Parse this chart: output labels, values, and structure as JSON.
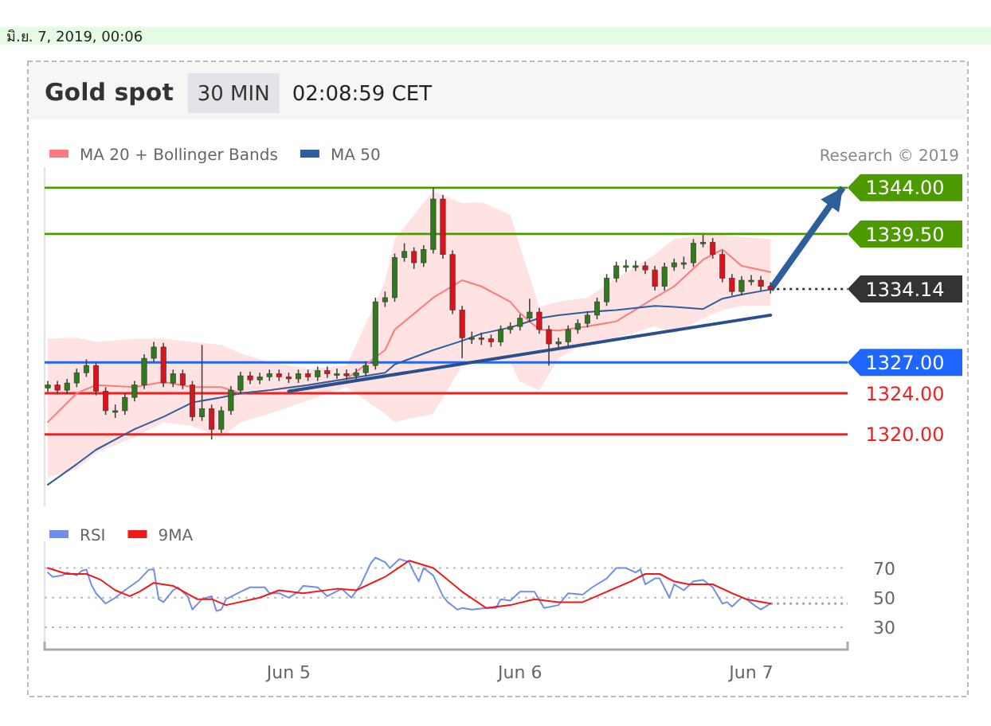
{
  "chart_data": [
    {
      "type": "candlestick",
      "title": "Gold spot",
      "subtitle": "30 MIN",
      "annotations": [
        "02:08:59 CET",
        "Research © 2019",
        "มิ.ย. 7, 2019, 00:06"
      ],
      "x": [
        "2019-06-03T23:00",
        "2019-06-04T00:00",
        "2019-06-04T01:00",
        "2019-06-04T02:00",
        "2019-06-04T03:00",
        "2019-06-04T04:00",
        "2019-06-04T05:00",
        "2019-06-04T06:00",
        "2019-06-04T07:00",
        "2019-06-04T08:00",
        "2019-06-04T09:00",
        "2019-06-04T10:00",
        "2019-06-04T11:00",
        "2019-06-04T12:00",
        "2019-06-04T13:00",
        "2019-06-04T14:00",
        "2019-06-04T15:00",
        "2019-06-04T16:00",
        "2019-06-04T17:00",
        "2019-06-04T18:00",
        "2019-06-04T19:00",
        "2019-06-04T20:00",
        "2019-06-04T21:00",
        "2019-06-04T22:00",
        "2019-06-04T23:00",
        "2019-06-05T00:00",
        "2019-06-05T01:00",
        "2019-06-05T02:00",
        "2019-06-05T03:00",
        "2019-06-05T04:00",
        "2019-06-05T05:00",
        "2019-06-05T06:00",
        "2019-06-05T07:00",
        "2019-06-05T08:00",
        "2019-06-05T09:00",
        "2019-06-05T10:00",
        "2019-06-05T11:00",
        "2019-06-05T12:00",
        "2019-06-05T13:00",
        "2019-06-05T14:00",
        "2019-06-05T15:00",
        "2019-06-05T16:00",
        "2019-06-05T17:00",
        "2019-06-05T18:00",
        "2019-06-05T19:00",
        "2019-06-05T20:00",
        "2019-06-05T21:00",
        "2019-06-05T22:00",
        "2019-06-05T23:00",
        "2019-06-06T00:00",
        "2019-06-06T01:00",
        "2019-06-06T02:00",
        "2019-06-06T03:00",
        "2019-06-06T04:00",
        "2019-06-06T05:00",
        "2019-06-06T06:00",
        "2019-06-06T07:00",
        "2019-06-06T08:00",
        "2019-06-06T09:00",
        "2019-06-06T10:00",
        "2019-06-06T11:00",
        "2019-06-06T12:00",
        "2019-06-06T13:00",
        "2019-06-06T14:00",
        "2019-06-06T15:00",
        "2019-06-06T16:00",
        "2019-06-06T17:00",
        "2019-06-06T18:00",
        "2019-06-06T19:00",
        "2019-06-06T20:00",
        "2019-06-06T21:00",
        "2019-06-06T22:00",
        "2019-06-06T23:00",
        "2019-06-07T00:00",
        "2019-06-07T01:00",
        "2019-06-07T02:00"
      ],
      "ohlc": [
        [
          1324.5,
          1325.2,
          1324.1,
          1324.8
        ],
        [
          1324.8,
          1325.2,
          1323.9,
          1324.3
        ],
        [
          1324.3,
          1325.4,
          1323.9,
          1325.0
        ],
        [
          1325.0,
          1326.4,
          1324.6,
          1326.0
        ],
        [
          1326.0,
          1327.3,
          1325.6,
          1326.7
        ],
        [
          1326.7,
          1327.0,
          1323.8,
          1324.2
        ],
        [
          1324.2,
          1324.6,
          1321.9,
          1322.3
        ],
        [
          1322.3,
          1322.9,
          1321.6,
          1322.3
        ],
        [
          1322.3,
          1324.0,
          1321.9,
          1323.6
        ],
        [
          1323.6,
          1325.2,
          1323.2,
          1324.8
        ],
        [
          1324.8,
          1327.8,
          1324.4,
          1327.4
        ],
        [
          1327.4,
          1329.0,
          1327.0,
          1328.5
        ],
        [
          1328.5,
          1328.9,
          1324.6,
          1325.0
        ],
        [
          1325.0,
          1326.3,
          1324.6,
          1325.9
        ],
        [
          1325.9,
          1326.3,
          1324.4,
          1324.8
        ],
        [
          1324.8,
          1325.2,
          1321.3,
          1321.7
        ],
        [
          1321.7,
          1328.7,
          1321.3,
          1322.5
        ],
        [
          1322.5,
          1322.9,
          1319.5,
          1320.5
        ],
        [
          1320.5,
          1322.7,
          1320.1,
          1322.3
        ],
        [
          1322.3,
          1324.7,
          1321.9,
          1324.3
        ],
        [
          1324.3,
          1326.1,
          1323.9,
          1325.7
        ],
        [
          1325.7,
          1326.1,
          1324.9,
          1325.3
        ],
        [
          1325.3,
          1326.0,
          1324.9,
          1325.6
        ],
        [
          1325.6,
          1326.3,
          1325.2,
          1325.9
        ],
        [
          1325.9,
          1326.3,
          1325.2,
          1325.6
        ],
        [
          1325.6,
          1326.0,
          1325.0,
          1325.4
        ],
        [
          1325.4,
          1326.3,
          1325.0,
          1325.9
        ],
        [
          1325.9,
          1326.3,
          1325.2,
          1325.6
        ],
        [
          1325.6,
          1326.6,
          1325.2,
          1326.2
        ],
        [
          1326.2,
          1326.6,
          1325.5,
          1325.9
        ],
        [
          1325.9,
          1326.4,
          1325.4,
          1325.9
        ],
        [
          1325.9,
          1326.3,
          1325.3,
          1325.7
        ],
        [
          1325.7,
          1326.4,
          1325.3,
          1326.0
        ],
        [
          1326.0,
          1327.1,
          1325.6,
          1326.7
        ],
        [
          1326.7,
          1333.3,
          1326.3,
          1332.9
        ],
        [
          1332.9,
          1333.9,
          1332.4,
          1333.3
        ],
        [
          1333.3,
          1337.6,
          1332.9,
          1337.2
        ],
        [
          1337.2,
          1338.6,
          1336.8,
          1337.8
        ],
        [
          1337.8,
          1338.2,
          1336.1,
          1336.7
        ],
        [
          1336.7,
          1338.4,
          1336.3,
          1338.0
        ],
        [
          1338.0,
          1344.0,
          1337.6,
          1342.9
        ],
        [
          1342.9,
          1343.3,
          1337.1,
          1337.5
        ],
        [
          1337.5,
          1337.9,
          1331.7,
          1332.1
        ],
        [
          1332.1,
          1332.5,
          1327.4,
          1329.4
        ],
        [
          1329.4,
          1330.0,
          1328.8,
          1329.4
        ],
        [
          1329.4,
          1329.9,
          1328.7,
          1329.3
        ],
        [
          1329.3,
          1329.7,
          1328.5,
          1329.0
        ],
        [
          1329.0,
          1330.6,
          1328.6,
          1330.2
        ],
        [
          1330.2,
          1330.9,
          1329.8,
          1330.5
        ],
        [
          1330.5,
          1331.7,
          1330.1,
          1331.3
        ],
        [
          1331.3,
          1333.2,
          1330.9,
          1331.9
        ],
        [
          1331.9,
          1332.3,
          1329.8,
          1330.2
        ],
        [
          1330.2,
          1330.6,
          1326.7,
          1328.8
        ],
        [
          1328.8,
          1329.4,
          1328.4,
          1329.0
        ],
        [
          1329.0,
          1330.6,
          1328.6,
          1330.2
        ],
        [
          1330.2,
          1331.2,
          1329.8,
          1330.8
        ],
        [
          1330.8,
          1332.0,
          1330.4,
          1331.6
        ],
        [
          1331.6,
          1333.3,
          1331.2,
          1332.9
        ],
        [
          1332.9,
          1335.6,
          1332.5,
          1335.2
        ],
        [
          1335.2,
          1336.8,
          1334.8,
          1336.4
        ],
        [
          1336.4,
          1337.0,
          1335.8,
          1336.4
        ],
        [
          1336.4,
          1336.9,
          1335.9,
          1336.4
        ],
        [
          1336.4,
          1336.8,
          1335.6,
          1336.0
        ],
        [
          1336.0,
          1336.4,
          1334.0,
          1334.4
        ],
        [
          1334.4,
          1336.7,
          1334.0,
          1336.3
        ],
        [
          1336.3,
          1337.1,
          1335.9,
          1336.7
        ],
        [
          1336.7,
          1337.3,
          1336.1,
          1336.7
        ],
        [
          1336.7,
          1339.0,
          1336.3,
          1338.6
        ],
        [
          1338.6,
          1339.4,
          1338.2,
          1338.7
        ],
        [
          1338.7,
          1339.1,
          1337.1,
          1337.5
        ],
        [
          1337.5,
          1337.9,
          1334.8,
          1335.2
        ],
        [
          1335.2,
          1335.6,
          1333.5,
          1333.9
        ],
        [
          1333.9,
          1335.4,
          1333.5,
          1335.0
        ],
        [
          1335.0,
          1335.5,
          1334.5,
          1335.0
        ],
        [
          1335.0,
          1335.4,
          1334.0,
          1334.4
        ],
        [
          1334.4,
          1334.8,
          1333.7,
          1334.14
        ]
      ],
      "series": [
        {
          "name": "MA 20 + Bollinger Bands",
          "type": "line",
          "color": "#ff7b7b",
          "x": [
            "2019-06-03T23:00",
            "2019-06-04T02:00",
            "2019-06-04T04:00",
            "2019-06-04T08:00",
            "2019-06-04T11:00",
            "2019-06-04T14:00",
            "2019-06-04T17:00",
            "2019-06-04T19:00",
            "2019-06-04T22:00",
            "2019-06-05T02:00",
            "2019-06-05T06:00",
            "2019-06-05T10:00",
            "2019-06-05T11:00",
            "2019-06-05T15:00",
            "2019-06-05T18:00",
            "2019-06-05T20:00",
            "2019-06-05T23:00",
            "2019-06-06T00:00",
            "2019-06-06T02:00",
            "2019-06-06T04:00",
            "2019-06-06T07:00",
            "2019-06-06T10:00",
            "2019-06-06T14:00",
            "2019-06-06T16:00",
            "2019-06-06T19:00",
            "2019-06-06T21:00",
            "2019-06-06T23:00",
            "2019-06-07T02:00"
          ],
          "values": [
            1321.2,
            1324.0,
            1324.8,
            1324.6,
            1325.1,
            1324.6,
            1324.6,
            1324.0,
            1324.3,
            1324.8,
            1325.4,
            1328.2,
            1330.2,
            1333.3,
            1335.0,
            1334.4,
            1332.9,
            1331.8,
            1330.2,
            1330.1,
            1330.5,
            1331.0,
            1333.3,
            1334.4,
            1337.0,
            1338.0,
            1336.4,
            1335.8
          ],
          "upper": [
            1329.3,
            1329.4,
            1329.0,
            1329.3,
            1329.3,
            1329.0,
            1328.7,
            1327.9,
            1327.0,
            1326.4,
            1326.7,
            1334.9,
            1339.0,
            1343.7,
            1342.5,
            1342.6,
            1341.4,
            1338.3,
            1332.4,
            1332.9,
            1333.3,
            1335.2,
            1337.5,
            1339.0,
            1339.4,
            1339.4,
            1339.2,
            1339.0
          ],
          "lower": [
            1315.8,
            1316.6,
            1318.2,
            1319.7,
            1321.2,
            1320.8,
            1319.7,
            1321.2,
            1322.0,
            1323.3,
            1324.6,
            1322.0,
            1321.2,
            1322.0,
            1326.7,
            1327.1,
            1327.0,
            1325.1,
            1324.3,
            1327.4,
            1329.0,
            1329.4,
            1330.5,
            1329.8,
            1331.3,
            1332.1,
            1332.5,
            1332.5
          ]
        },
        {
          "name": "MA 50",
          "type": "line",
          "color": "#2f5e9e",
          "x": [
            "2019-06-03T23:00",
            "2019-06-04T02:00",
            "2019-06-04T04:00",
            "2019-06-04T08:00",
            "2019-06-04T11:00",
            "2019-06-04T14:00",
            "2019-06-04T17:00",
            "2019-06-04T19:00",
            "2019-06-04T22:00",
            "2019-06-05T02:00",
            "2019-06-05T06:00",
            "2019-06-05T10:00",
            "2019-06-05T11:00",
            "2019-06-05T15:00",
            "2019-06-05T18:00",
            "2019-06-05T20:00",
            "2019-06-05T23:00",
            "2019-06-06T00:00",
            "2019-06-06T02:00",
            "2019-06-06T04:00",
            "2019-06-06T07:00",
            "2019-06-06T10:00",
            "2019-06-06T14:00",
            "2019-06-06T16:00",
            "2019-06-06T19:00",
            "2019-06-06T21:00",
            "2019-06-06T23:00",
            "2019-06-07T02:00"
          ],
          "values": [
            1315.1,
            1317.1,
            1318.5,
            1320.5,
            1321.7,
            1323.1,
            1323.6,
            1324.0,
            1324.3,
            1324.8,
            1325.4,
            1326.0,
            1326.8,
            1328.2,
            1329.1,
            1329.8,
            1330.4,
            1330.7,
            1331.3,
            1331.6,
            1331.9,
            1332.1,
            1332.5,
            1332.4,
            1332.2,
            1333.2,
            1333.6,
            1334.1
          ]
        },
        {
          "type": "line",
          "color": "#2b4f8c",
          "x": [
            "2019-06-05T00:00",
            "2019-06-07T02:00"
          ],
          "values": [
            1324.2,
            1331.6
          ]
        },
        {
          "type": "line",
          "color": "#2d5f9a",
          "x": [
            "2019-06-07T02:00",
            "2019-06-07T09:30"
          ],
          "values": [
            1334.1,
            1344
          ]
        }
      ],
      "xlim": [
        "2019-06-03T22:40",
        "2019-06-07T10:00"
      ],
      "ylim": [
        1313,
        1346
      ],
      "legend": "top left",
      "ref_lines": [
        {
          "axis": "y",
          "value": 1344,
          "label": "1344.00",
          "color": "#4c9a00"
        },
        {
          "axis": "y",
          "value": 1339.5,
          "label": "1339.50",
          "color": "#4c9a00"
        },
        {
          "axis": "y",
          "value": 1334.14,
          "label": "1334.14",
          "color": "#333333",
          "line_style": "dotted"
        },
        {
          "axis": "y",
          "value": 1327,
          "label": "1327.00",
          "color": "#1f66ff"
        },
        {
          "axis": "y",
          "value": 1324,
          "label": "1324.00",
          "color": "#f02020"
        },
        {
          "axis": "y",
          "value": 1320,
          "label": "1320.00",
          "color": "#f02020"
        }
      ]
    },
    {
      "type": "line",
      "series": [
        {
          "name": "RSI",
          "color": "#6f8fe8",
          "x": [
            "2019-06-03T23:00",
            "2019-06-03T23:30",
            "2019-06-04T00:30",
            "2019-06-04T01:00",
            "2019-06-04T02:00",
            "2019-06-04T02:30",
            "2019-06-04T03:00",
            "2019-06-04T03:30",
            "2019-06-04T04:00",
            "2019-06-04T05:00",
            "2019-06-04T06:00",
            "2019-06-04T07:00",
            "2019-06-04T08:30",
            "2019-06-04T09:30",
            "2019-06-04T10:00",
            "2019-06-04T10:30",
            "2019-06-04T11:00",
            "2019-06-04T12:00",
            "2019-06-04T12:30",
            "2019-06-04T13:30",
            "2019-06-04T14:00",
            "2019-06-04T15:00",
            "2019-06-04T16:00",
            "2019-06-04T16:30",
            "2019-06-04T17:00",
            "2019-06-04T17:30",
            "2019-06-04T19:00",
            "2019-06-04T20:00",
            "2019-06-04T21:30",
            "2019-06-04T22:00",
            "2019-06-04T23:00",
            "2019-06-05T00:00",
            "2019-06-05T01:00",
            "2019-06-05T01:30",
            "2019-06-05T03:00",
            "2019-06-05T04:00",
            "2019-06-05T05:30",
            "2019-06-05T06:30",
            "2019-06-05T07:30",
            "2019-06-05T08:30",
            "2019-06-05T09:00",
            "2019-06-05T10:00",
            "2019-06-05T10:30",
            "2019-06-05T11:30",
            "2019-06-05T12:30",
            "2019-06-05T13:00",
            "2019-06-05T13:30",
            "2019-06-05T14:00",
            "2019-06-05T15:00",
            "2019-06-05T15:30",
            "2019-06-05T16:00",
            "2019-06-05T16:30",
            "2019-06-05T17:30",
            "2019-06-05T18:00",
            "2019-06-05T19:00",
            "2019-06-05T20:30",
            "2019-06-05T21:30",
            "2019-06-05T22:00",
            "2019-06-05T23:00",
            "2019-06-06T00:00",
            "2019-06-06T01:30",
            "2019-06-06T02:30",
            "2019-06-06T04:00",
            "2019-06-06T05:00",
            "2019-06-06T06:30",
            "2019-06-06T07:30",
            "2019-06-06T09:00",
            "2019-06-06T10:00",
            "2019-06-06T11:00",
            "2019-06-06T12:00",
            "2019-06-06T12:30",
            "2019-06-06T13:00",
            "2019-06-06T14:00",
            "2019-06-06T14:30",
            "2019-06-06T15:30",
            "2019-06-06T16:00",
            "2019-06-06T17:00",
            "2019-06-06T18:00",
            "2019-06-06T19:00",
            "2019-06-06T20:00",
            "2019-06-06T21:00",
            "2019-06-06T21:30",
            "2019-06-06T22:00",
            "2019-06-06T23:00",
            "2019-06-06T23:30",
            "2019-06-07T00:30",
            "2019-06-07T01:00",
            "2019-06-07T02:00"
          ],
          "values": [
            67,
            64,
            65,
            67,
            65,
            68,
            69,
            59,
            53,
            46,
            50,
            55,
            62,
            69,
            69,
            49,
            47,
            55,
            57,
            51,
            42,
            49,
            51,
            41,
            42,
            49,
            54,
            57,
            57,
            53,
            53,
            50,
            54,
            58,
            57,
            51,
            56,
            50,
            59,
            73,
            77,
            74,
            70,
            76,
            74,
            67,
            61,
            70,
            65,
            58,
            51,
            47,
            42,
            43,
            42,
            43,
            43,
            49,
            48,
            54,
            54,
            43,
            45,
            53,
            52,
            57,
            63,
            70,
            70,
            67,
            69,
            59,
            63,
            63,
            50,
            59,
            55,
            61,
            62,
            57,
            46,
            47,
            44,
            50,
            49,
            44,
            42,
            46
          ]
        },
        {
          "name": "9MA",
          "color": "#f01818",
          "x": [
            "2019-06-03T23:00",
            "2019-06-04T01:00",
            "2019-06-04T03:00",
            "2019-06-04T04:30",
            "2019-06-04T06:00",
            "2019-06-04T07:30",
            "2019-06-04T08:30",
            "2019-06-04T10:00",
            "2019-06-04T12:00",
            "2019-06-04T14:30",
            "2019-06-04T16:00",
            "2019-06-04T17:30",
            "2019-06-04T21:00",
            "2019-06-04T23:00",
            "2019-06-05T01:30",
            "2019-06-05T05:00",
            "2019-06-05T07:00",
            "2019-06-05T10:00",
            "2019-06-05T12:30",
            "2019-06-05T15:00",
            "2019-06-05T18:00",
            "2019-06-05T20:30",
            "2019-06-05T23:00",
            "2019-06-06T01:30",
            "2019-06-06T04:00",
            "2019-06-06T06:30",
            "2019-06-06T09:00",
            "2019-06-06T11:30",
            "2019-06-06T13:00",
            "2019-06-06T14:30",
            "2019-06-06T16:00",
            "2019-06-06T17:30",
            "2019-06-06T20:00",
            "2019-06-06T22:00",
            "2019-06-06T23:30",
            "2019-06-07T02:00"
          ],
          "values": [
            70,
            66,
            66,
            62,
            55,
            51,
            54,
            60,
            58,
            49,
            49,
            45,
            50,
            55,
            53,
            56,
            55,
            64,
            75,
            70,
            54,
            43,
            45,
            49,
            47,
            47,
            54,
            61,
            66,
            66,
            61,
            59,
            59,
            53,
            49,
            46
          ]
        }
      ],
      "xlim": [
        "2019-06-03T22:40",
        "2019-06-07T10:00"
      ],
      "xticks": [
        {
          "value": "2019-06-05",
          "label": "Jun 5"
        },
        {
          "value": "2019-06-06",
          "label": "Jun 6"
        },
        {
          "value": "2019-06-07",
          "label": "Jun 7"
        }
      ],
      "ylim": [
        15,
        88
      ],
      "yticks": [
        30,
        50,
        70
      ],
      "grid": "y",
      "legend": "top left",
      "ref_lines": [
        {
          "axis": "y",
          "value": 46,
          "color": "#8aa8ee",
          "line_style": "dotted"
        }
      ]
    }
  ]
}
